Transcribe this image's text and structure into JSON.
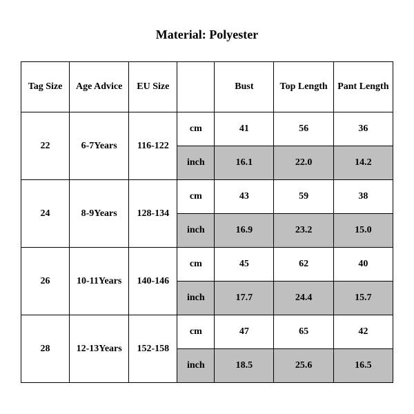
{
  "title": "Material: Polyester",
  "table": {
    "columns": [
      "Tag Size",
      "Age Advice",
      "EU Size",
      "",
      "Bust",
      "Top Length",
      "Pant Length"
    ],
    "col_widths_pct": [
      13,
      16,
      13,
      10,
      16,
      16,
      16
    ],
    "unit_labels": {
      "cm": "cm",
      "inch": "inch"
    },
    "rows": [
      {
        "tag_size": "22",
        "age_advice": "6-7Years",
        "eu_size": "116-122",
        "cm": {
          "bust": "41",
          "top_length": "56",
          "pant_length": "36"
        },
        "inch": {
          "bust": "16.1",
          "top_length": "22.0",
          "pant_length": "14.2"
        }
      },
      {
        "tag_size": "24",
        "age_advice": "8-9Years",
        "eu_size": "128-134",
        "cm": {
          "bust": "43",
          "top_length": "59",
          "pant_length": "38"
        },
        "inch": {
          "bust": "16.9",
          "top_length": "23.2",
          "pant_length": "15.0"
        }
      },
      {
        "tag_size": "26",
        "age_advice": "10-11Years",
        "eu_size": "140-146",
        "cm": {
          "bust": "45",
          "top_length": "62",
          "pant_length": "40"
        },
        "inch": {
          "bust": "17.7",
          "top_length": "24.4",
          "pant_length": "15.7"
        }
      },
      {
        "tag_size": "28",
        "age_advice": "12-13Years",
        "eu_size": "152-158",
        "cm": {
          "bust": "47",
          "top_length": "65",
          "pant_length": "42"
        },
        "inch": {
          "bust": "18.5",
          "top_length": "25.6",
          "pant_length": "16.5"
        }
      }
    ],
    "shaded_bg": "#bfbfbf",
    "border_color": "#000000",
    "background_color": "#ffffff",
    "font_family": "Times New Roman"
  }
}
